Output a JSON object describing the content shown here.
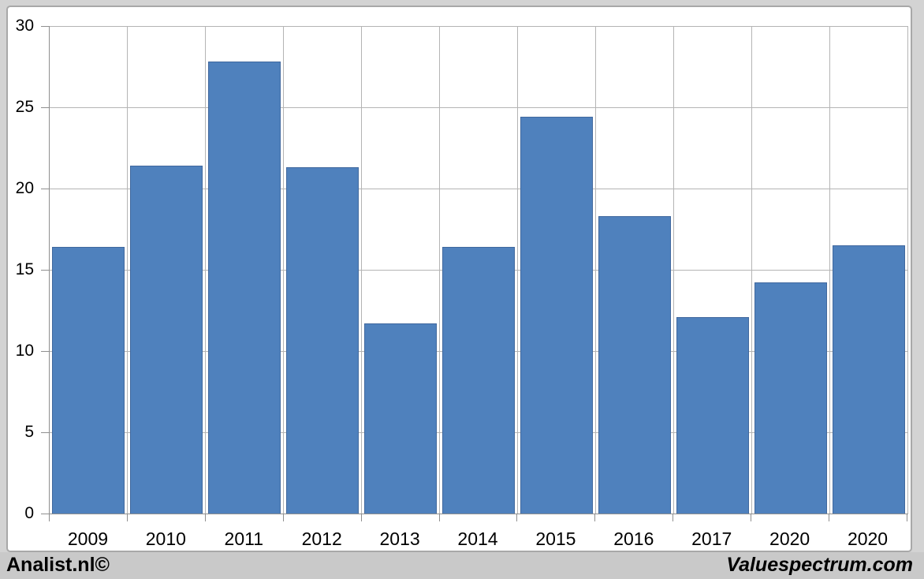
{
  "chart_data": {
    "type": "bar",
    "categories": [
      "2009",
      "2010",
      "2011",
      "2012",
      "2013",
      "2014",
      "2015",
      "2016",
      "2017",
      "2020",
      "2020"
    ],
    "values": [
      16.4,
      21.4,
      27.8,
      21.3,
      11.7,
      16.4,
      24.4,
      18.3,
      12.1,
      14.2,
      16.5
    ],
    "title": "",
    "xlabel": "",
    "ylabel": "",
    "ylim": [
      0,
      30
    ],
    "yticks": [
      0,
      5,
      10,
      15,
      20,
      25,
      30
    ],
    "grid": true,
    "legend": false,
    "bar_color": "#4f81bd",
    "bar_border_color": "#40689e",
    "gridline_color": "#b4b4b4",
    "axis_color": "#8f8f8f",
    "plot_background": "#ffffff"
  },
  "footer": {
    "left": "Analist.nl©",
    "right": "Valuespectrum.com"
  }
}
